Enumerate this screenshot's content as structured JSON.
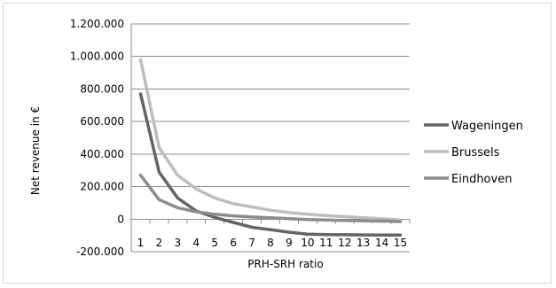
{
  "chart_data": {
    "type": "line",
    "title": "",
    "xlabel": "PRH-SRH ratio",
    "ylabel": "Net revenue in €",
    "ylim": [
      -200000,
      1200000
    ],
    "yticks": [
      -200000,
      0,
      200000,
      400000,
      600000,
      800000,
      1000000,
      1200000
    ],
    "ytick_labels": [
      "-200.000",
      "0",
      "200.000",
      "400.000",
      "600.000",
      "800.000",
      "1.000.000",
      "1.200.000"
    ],
    "categories": [
      "1",
      "2",
      "3",
      "4",
      "5",
      "6",
      "7",
      "8",
      "9",
      "10",
      "11",
      "12",
      "13",
      "14",
      "15"
    ],
    "grid": "horizontal",
    "legend": "right",
    "series": [
      {
        "name": "Wageningen",
        "color": "#646464",
        "values": [
          770000,
          290000,
          130000,
          50000,
          10000,
          -20000,
          -50000,
          -65000,
          -80000,
          -92000,
          -95000,
          -96000,
          -97000,
          -98000,
          -98000
        ]
      },
      {
        "name": "Brussels",
        "color": "#bdbdbd",
        "values": [
          980000,
          440000,
          270000,
          185000,
          130000,
          95000,
          75000,
          55000,
          40000,
          30000,
          22000,
          15000,
          8000,
          2000,
          -5000
        ]
      },
      {
        "name": "Eindhoven",
        "color": "#8c8c8c",
        "values": [
          270000,
          120000,
          70000,
          45000,
          30000,
          20000,
          13000,
          8000,
          3000,
          -2000,
          -5000,
          -8000,
          -10000,
          -12000,
          -15000
        ]
      }
    ]
  }
}
